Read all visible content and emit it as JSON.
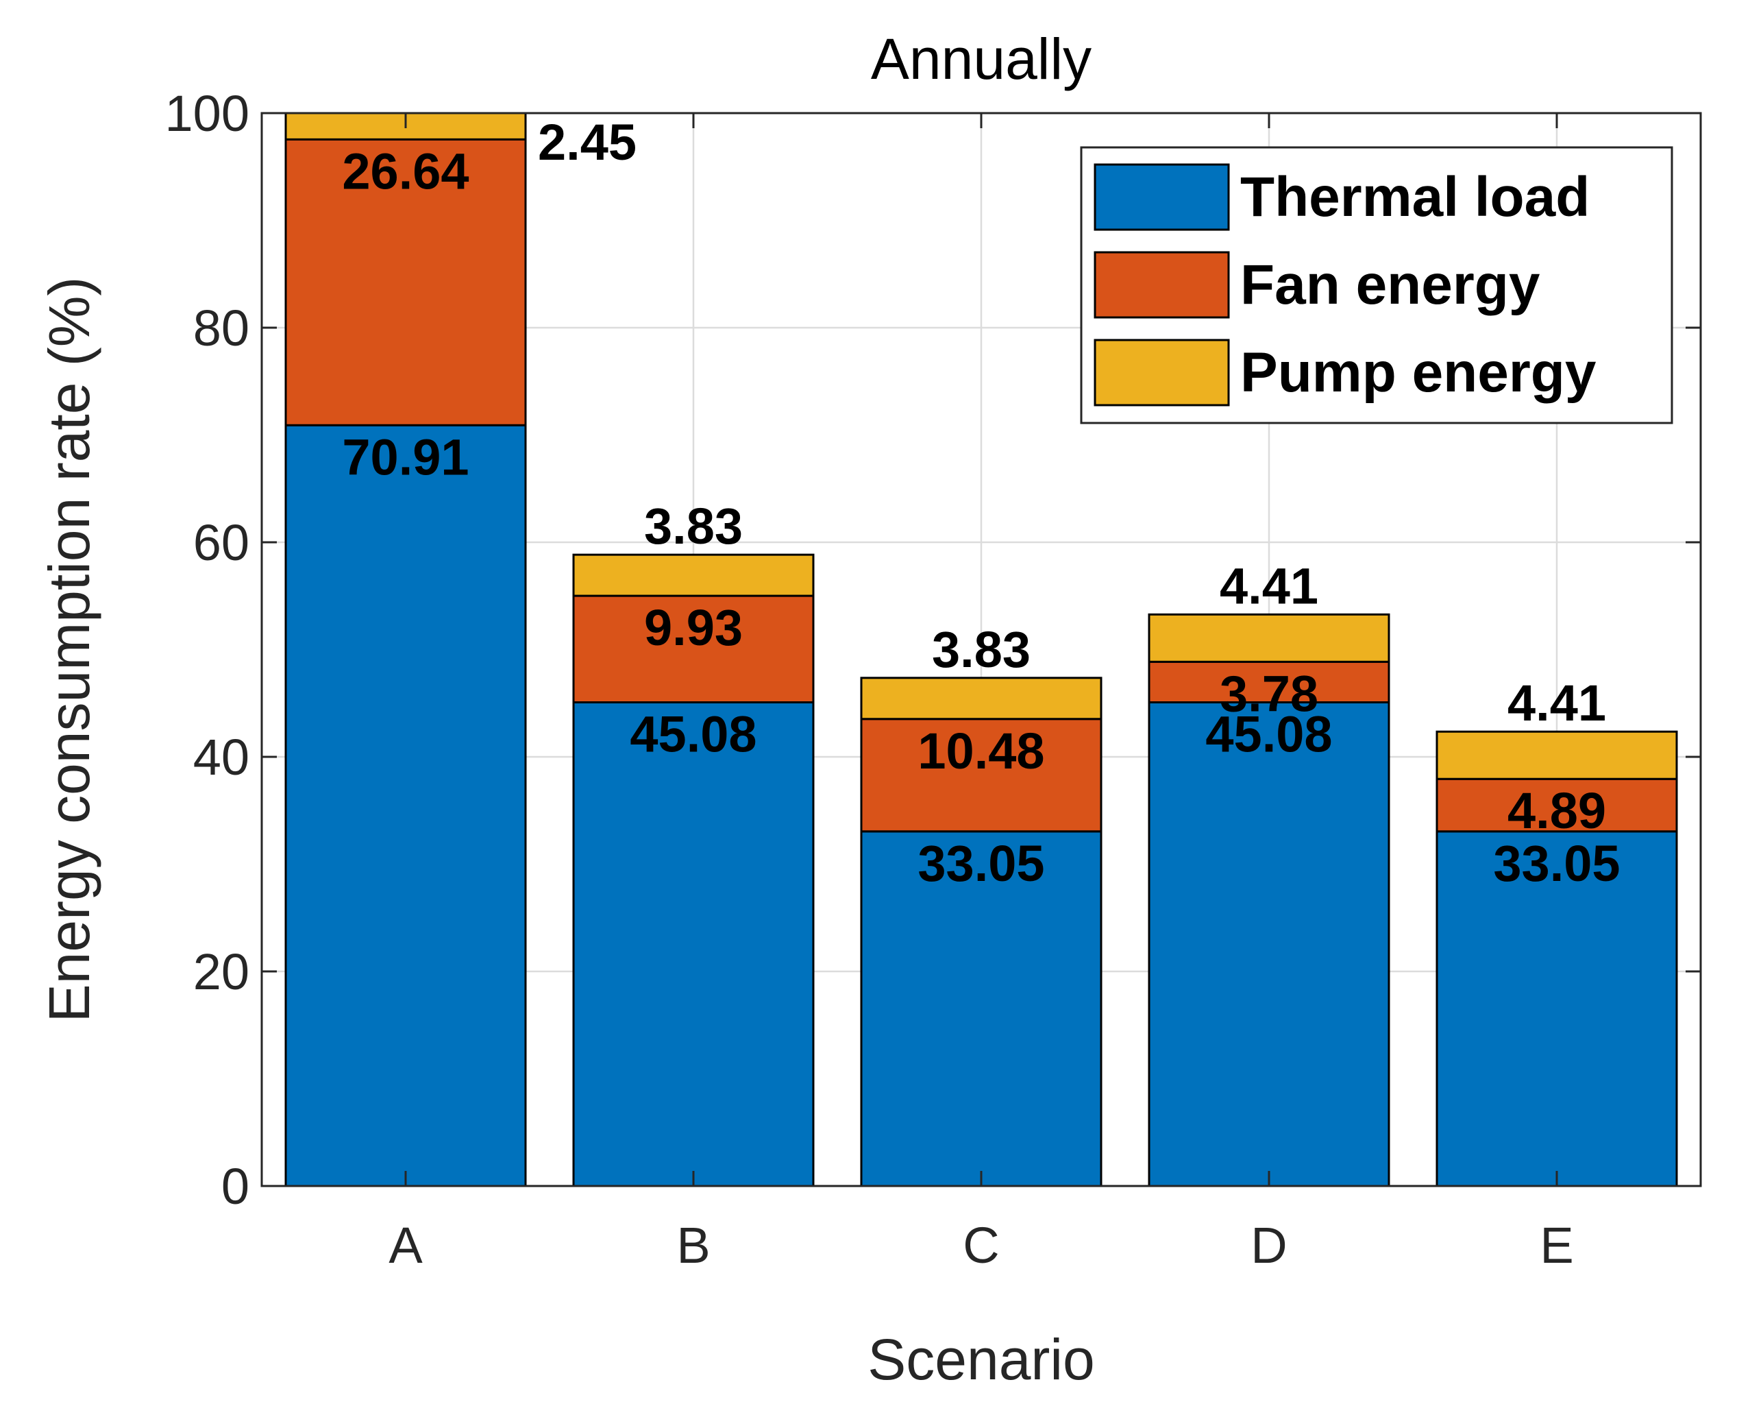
{
  "chart_data": {
    "type": "bar",
    "stacked": true,
    "title": "Annually",
    "xlabel": "Scenario",
    "ylabel": "Energy consumption rate (%)",
    "ylim": [
      0,
      100
    ],
    "yticks": [
      0,
      20,
      40,
      60,
      80,
      100
    ],
    "grid": true,
    "legend_position": "top-right",
    "categories": [
      "A",
      "B",
      "C",
      "D",
      "E"
    ],
    "series": [
      {
        "name": "Thermal load",
        "color": "#0072BD",
        "values": [
          70.91,
          45.08,
          33.05,
          45.08,
          33.05
        ],
        "labels": [
          "70.91",
          "45.08",
          "33.05",
          "45.08",
          "33.05"
        ]
      },
      {
        "name": "Fan energy",
        "color": "#D95319",
        "values": [
          26.64,
          9.93,
          10.48,
          3.78,
          4.89
        ],
        "labels": [
          "26.64",
          "9.93",
          "10.48",
          "3.78",
          "4.89"
        ]
      },
      {
        "name": "Pump energy",
        "color": "#EDB120",
        "values": [
          2.45,
          3.83,
          3.83,
          4.41,
          4.41
        ],
        "labels": [
          "2.45",
          "3.83",
          "3.83",
          "4.41",
          "4.41"
        ]
      }
    ]
  }
}
